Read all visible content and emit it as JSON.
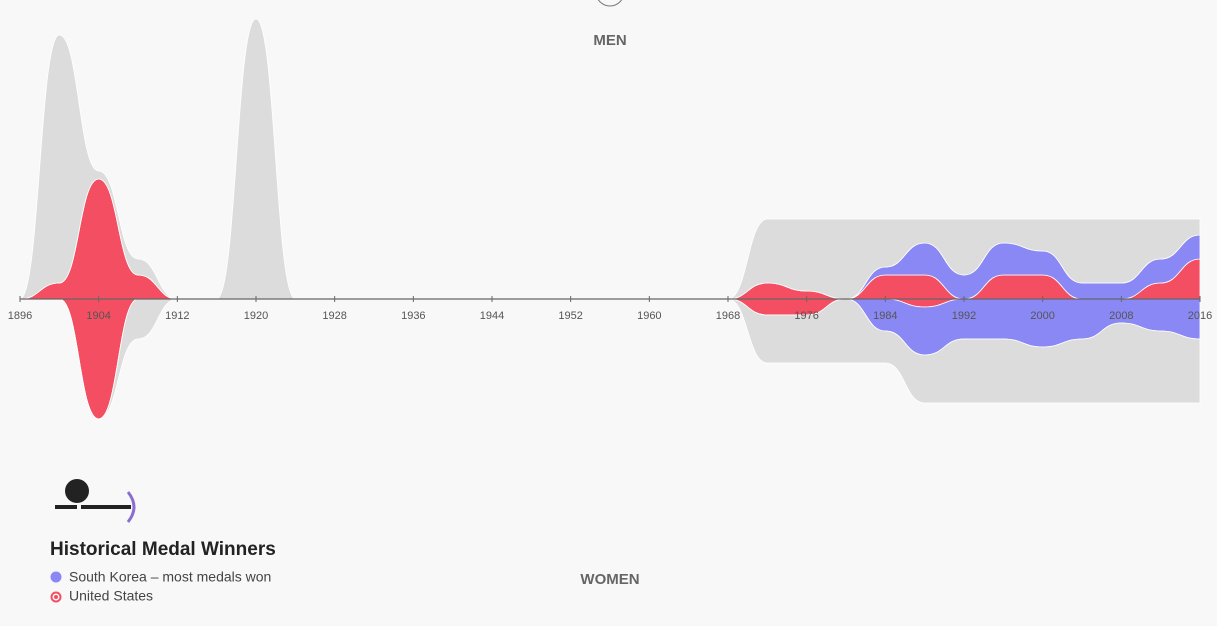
{
  "chart_data": [
    {
      "type": "stream",
      "title": "MEN",
      "direction": "up",
      "legend_title": "Historical Medal Winners",
      "x": [
        1896,
        1900,
        1904,
        1908,
        1912,
        1916,
        1920,
        1924,
        1968,
        1972,
        1976,
        1980,
        1984,
        1988,
        1992,
        1996,
        2000,
        2004,
        2008,
        2012,
        2016
      ],
      "xlim": [
        1896,
        2016
      ],
      "xticks": [
        1896,
        1904,
        1912,
        1920,
        1928,
        1936,
        1944,
        1952,
        1960,
        1968,
        1976,
        1984,
        1992,
        2000,
        2008,
        2016
      ],
      "series": [
        {
          "name": "United States",
          "color": "#f44e62",
          "values": [
            0,
            2,
            15,
            3,
            0,
            0,
            0,
            0,
            0,
            2,
            1,
            0,
            3,
            3,
            0,
            3,
            3,
            0,
            0,
            2,
            5
          ]
        },
        {
          "name": "South Korea – most medals won",
          "color": "#8a88f5",
          "values": [
            0,
            0,
            0,
            0,
            0,
            0,
            0,
            0,
            0,
            0,
            0,
            0,
            1,
            4,
            3,
            4,
            3,
            2,
            2,
            3,
            3
          ]
        },
        {
          "color": "#dcdcdc",
          "values": [
            0,
            31,
            1,
            2,
            0,
            0,
            35,
            0,
            0,
            8,
            9,
            10,
            6,
            3,
            7,
            3,
            4,
            8,
            8,
            5,
            2
          ]
        }
      ]
    },
    {
      "type": "stream",
      "title": "WOMEN",
      "direction": "down",
      "x": [
        1896,
        1900,
        1904,
        1908,
        1912,
        1916,
        1920,
        1924,
        1968,
        1972,
        1976,
        1980,
        1984,
        1988,
        1992,
        1996,
        2000,
        2004,
        2008,
        2012,
        2016
      ],
      "xlim": [
        1896,
        2016
      ],
      "series": [
        {
          "color": "#f44e62",
          "values": [
            0,
            0,
            15,
            0,
            0,
            0,
            0,
            0,
            0,
            2,
            2,
            0,
            0,
            1,
            0,
            0,
            0,
            0,
            0,
            0,
            0
          ]
        },
        {
          "color": "#8a88f5",
          "values": [
            0,
            0,
            0,
            0,
            0,
            0,
            0,
            0,
            0,
            0,
            0,
            0,
            4,
            6,
            5,
            5,
            6,
            5,
            3,
            4,
            5
          ]
        },
        {
          "color": "#dcdcdc",
          "values": [
            0,
            0,
            0,
            5,
            0,
            0,
            0,
            0,
            0,
            6,
            6,
            8,
            4,
            6,
            8,
            8,
            7,
            8,
            10,
            9,
            8
          ]
        }
      ]
    }
  ]
}
